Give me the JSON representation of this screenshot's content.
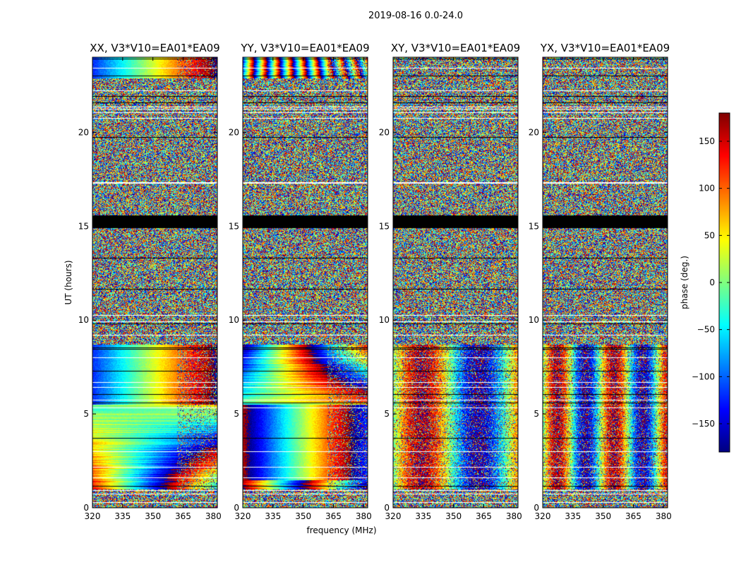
{
  "figure": {
    "suptitle": "2019-08-16 0.0-24.0",
    "xlabel": "frequency (MHz)",
    "ylabel": "UT (hours)"
  },
  "colorbar": {
    "label": "phase (deg.)",
    "range": [
      -180,
      180
    ],
    "ticks": [
      150,
      100,
      50,
      0,
      -50,
      -100,
      -150
    ],
    "tick_labels": [
      "150",
      "100",
      "50",
      "0",
      "−50",
      "−100",
      "−150"
    ],
    "colormap": "jet",
    "colors": [
      "#00007f",
      "#0000ff",
      "#007fff",
      "#00ffff",
      "#7fff7f",
      "#ffff00",
      "#ff7f00",
      "#ff0000",
      "#7f0000"
    ]
  },
  "chart_data": [
    {
      "type": "heatmap",
      "title": "XX, V3*V10=EA01*EA09",
      "xlim": [
        320,
        382
      ],
      "ylim": [
        0,
        24
      ],
      "xticks": [
        320,
        335,
        350,
        365,
        380
      ],
      "yticks": [
        0,
        5,
        10,
        15,
        20
      ],
      "ylabel": "UT (hours)"
    },
    {
      "type": "heatmap",
      "title": "YY, V3*V10=EA01*EA09",
      "xlim": [
        320,
        382
      ],
      "ylim": [
        0,
        24
      ],
      "xticks": [
        320,
        335,
        350,
        365,
        380
      ],
      "yticks": [
        0,
        5,
        10,
        15,
        20
      ],
      "xlabel": "frequency (MHz)"
    },
    {
      "type": "heatmap",
      "title": "XY, V3*V10=EA01*EA09",
      "xlim": [
        320,
        382
      ],
      "ylim": [
        0,
        24
      ],
      "xticks": [
        320,
        335,
        350,
        365,
        380
      ],
      "yticks": [
        0,
        5,
        10,
        15,
        20
      ]
    },
    {
      "type": "heatmap",
      "title": "YX, V3*V10=EA01*EA09",
      "xlim": [
        320,
        382
      ],
      "ylim": [
        0,
        24
      ],
      "xticks": [
        320,
        335,
        350,
        365,
        380
      ],
      "yticks": [
        0,
        5,
        10,
        15,
        20
      ]
    }
  ]
}
